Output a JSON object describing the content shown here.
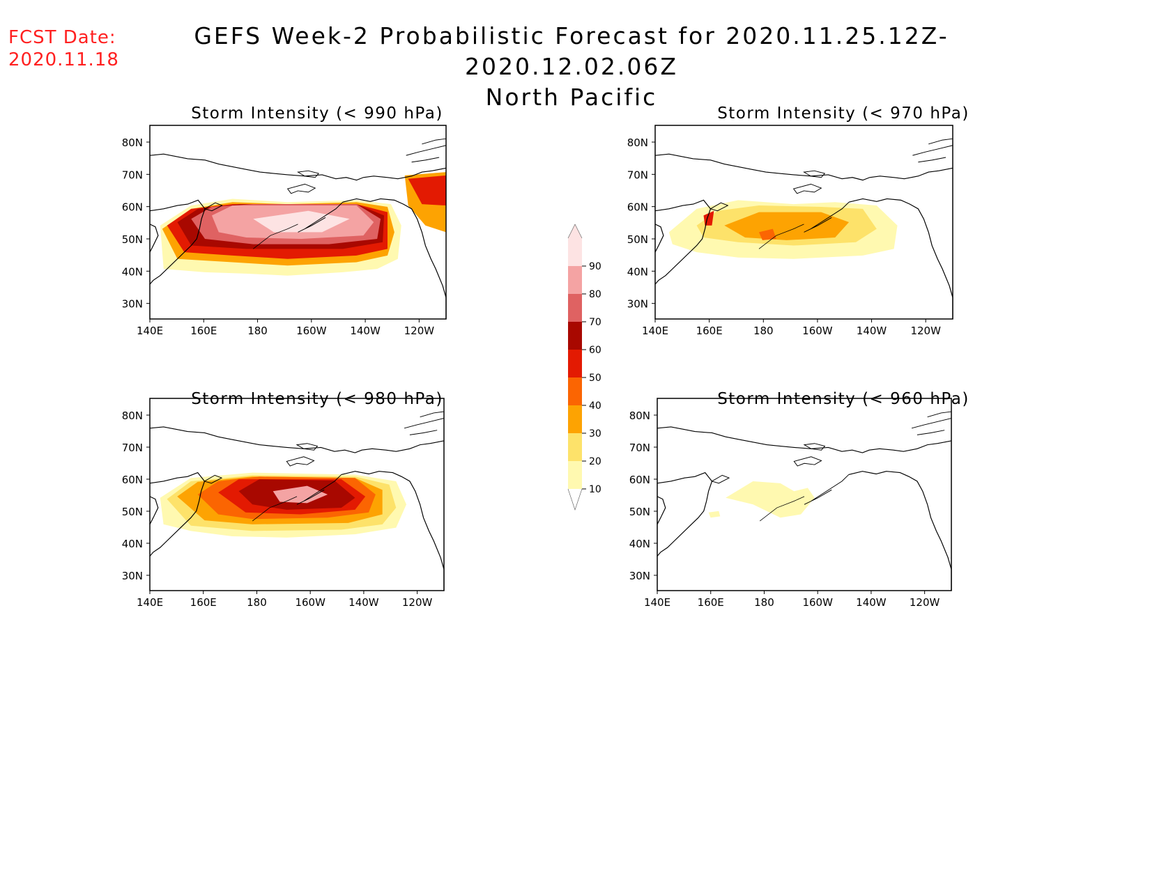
{
  "header": {
    "fcst_label": "FCST Date:",
    "fcst_date": "2020.11.18",
    "title_line1": "GEFS Week-2 Probabilistic Forecast for 2020.11.25.12Z-2020.12.02.06Z",
    "title_line2": "North Pacific"
  },
  "axes": {
    "lat_labels": [
      "80N",
      "70N",
      "60N",
      "50N",
      "40N",
      "30N"
    ],
    "lon_labels": [
      "140E",
      "160E",
      "180",
      "160W",
      "140W",
      "120W"
    ]
  },
  "panels": [
    {
      "title": "Storm Intensity (< 990 hPa)"
    },
    {
      "title": "Storm Intensity (< 970 hPa)"
    },
    {
      "title": "Storm Intensity (< 980 hPa)"
    },
    {
      "title": "Storm Intensity (< 960 hPa)"
    }
  ],
  "colorbar": {
    "labels": [
      "10",
      "20",
      "30",
      "40",
      "50",
      "60",
      "70",
      "80",
      "90"
    ],
    "colors": [
      "#fff9b0",
      "#fde26a",
      "#fda302",
      "#fb6502",
      "#e31a02",
      "#a80800",
      "#df6262",
      "#f4a3a3",
      "#fde3e3"
    ]
  }
}
